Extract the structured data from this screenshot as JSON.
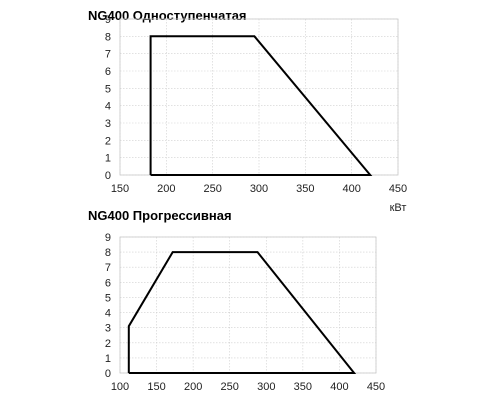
{
  "chart_data": [
    {
      "type": "line",
      "title": "NG400 Одноступенчатая",
      "xlabel": "кВт",
      "ylabel": "",
      "xlim": [
        150,
        450
      ],
      "ylim": [
        0,
        9
      ],
      "xticks": [
        "150",
        "200",
        "250",
        "300",
        "350",
        "400",
        "450"
      ],
      "yticks": [
        "0",
        "1",
        "2",
        "3",
        "4",
        "5",
        "6",
        "7",
        "8",
        "9"
      ],
      "grid": true,
      "series": [
        {
          "x": [
            183,
            183,
            295,
            420,
            183
          ],
          "y": [
            0,
            8,
            8,
            0,
            0
          ],
          "color": "#000000"
        }
      ]
    },
    {
      "type": "line",
      "title": "NG400 Прогрессивная",
      "xlabel": "",
      "ylabel": "",
      "xlim": [
        100,
        450
      ],
      "ylim": [
        0,
        9
      ],
      "xticks": [
        "100",
        "150",
        "200",
        "250",
        "300",
        "350",
        "400",
        "450"
      ],
      "yticks": [
        "0",
        "1",
        "2",
        "3",
        "4",
        "5",
        "6",
        "7",
        "8",
        "9"
      ],
      "grid": true,
      "series": [
        {
          "x": [
            112,
            112,
            172,
            288,
            420,
            112
          ],
          "y": [
            0,
            3.1,
            8,
            8,
            0,
            0
          ],
          "color": "#000000"
        }
      ]
    }
  ]
}
